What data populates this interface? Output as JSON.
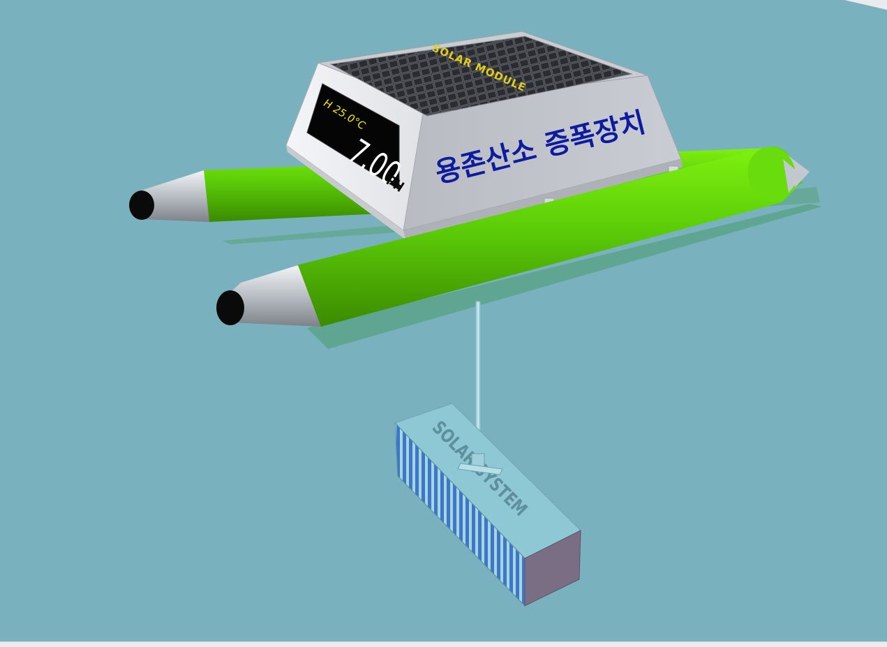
{
  "device": {
    "title": "용존산소 증폭장치",
    "solar_panel_label": "SOLAR MODULE",
    "display": {
      "temperature": "H 25.0°C",
      "ph_value": "7.00",
      "ph_unit": "PH"
    },
    "submerged_unit_label": "SOLAR SYSTEM"
  },
  "colors": {
    "water": "#79b2be",
    "pontoon": "#5fcf0a",
    "housing": "#d9dde3",
    "title_text": "#0a1aa0",
    "display_text": "#ffffff",
    "display_temp": "#f2e600",
    "panel_label": "#e8d020",
    "submerged_box": "#8cc6d2",
    "fins": "#3c78c8"
  }
}
